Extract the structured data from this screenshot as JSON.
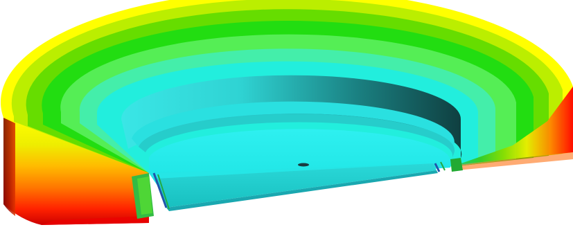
{
  "figure": {
    "subject": "half-annulus-fea-contour-render",
    "colors": {
      "background": "#ffffff",
      "contour_bands": [
        "#ffff00",
        "#aaee00",
        "#55dd00",
        "#11dd22",
        "#55ee66",
        "#44f0b8",
        "#22eeee"
      ],
      "flat_face": "#22eeee",
      "inner_wall_light": "#44e8e8",
      "inner_wall_dark": "#114848",
      "cut_face_bands": [
        "#ff0000",
        "#ff7700",
        "#ffbb00",
        "#eeee00",
        "#99dd00",
        "#44cc11",
        "#22bb55"
      ],
      "cut_face_dark": "#880000",
      "seal_groove": "#2255aa"
    }
  }
}
